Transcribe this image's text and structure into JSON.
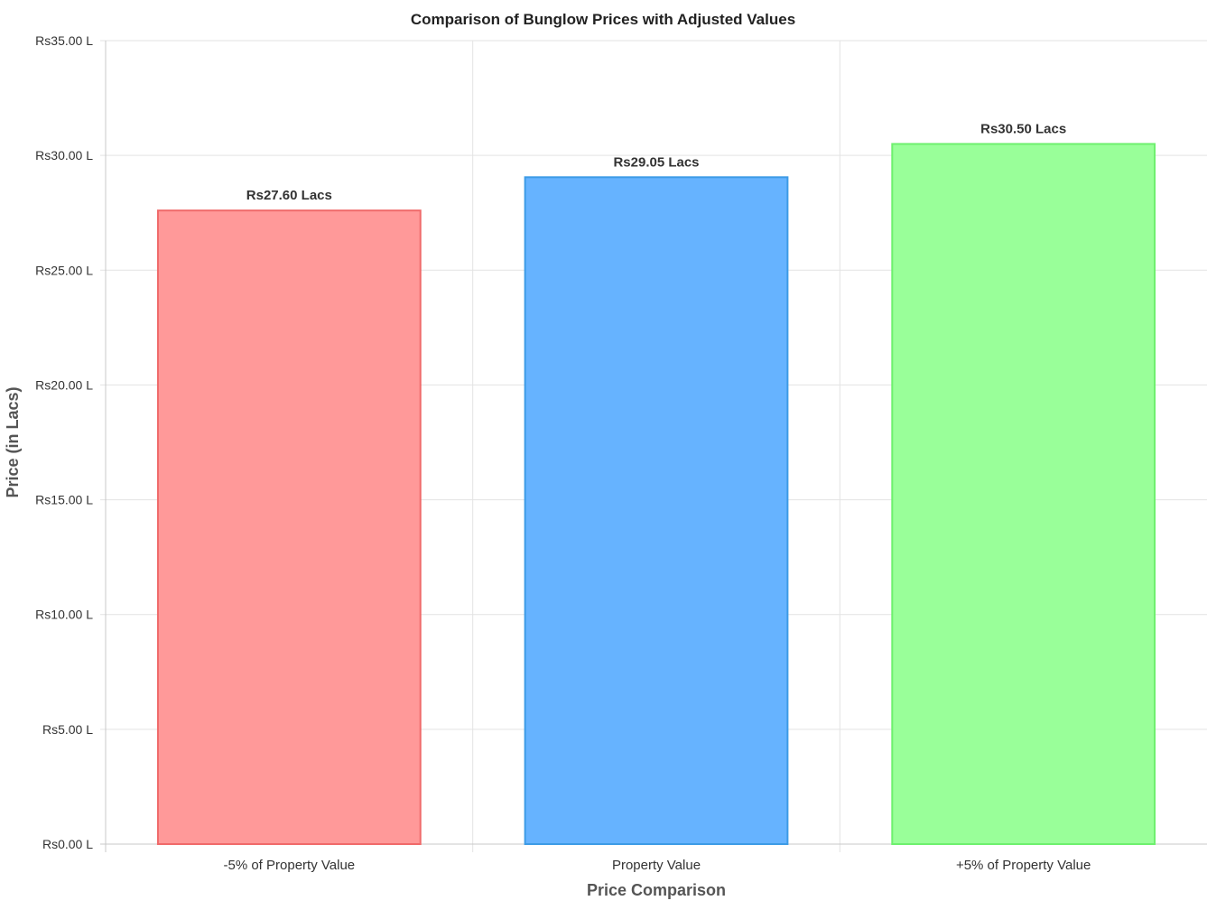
{
  "chart_data": {
    "type": "bar",
    "title": "Comparison of Bunglow Prices with Adjusted Values",
    "xlabel": "Price Comparison",
    "ylabel": "Price (in Lacs)",
    "categories": [
      "-5% of Property Value",
      "Property Value",
      "+5% of Property Value"
    ],
    "values": [
      27.6,
      29.05,
      30.5
    ],
    "data_labels": [
      "Rs27.60 Lacs",
      "Rs29.05 Lacs",
      "Rs30.50 Lacs"
    ],
    "ylim": [
      0,
      35
    ],
    "y_ticks": [
      0,
      5,
      10,
      15,
      20,
      25,
      30,
      35
    ],
    "y_tick_labels": [
      "Rs0.00 L",
      "Rs5.00 L",
      "Rs10.00 L",
      "Rs15.00 L",
      "Rs20.00 L",
      "Rs25.00 L",
      "Rs30.00 L",
      "Rs35.00 L"
    ],
    "grid": true,
    "legend": "none",
    "bar_fill_colors": [
      "#ff9999",
      "#66b3ff",
      "#99ff99"
    ],
    "bar_border_colors": [
      "#f06a6a",
      "#3d9be6",
      "#6ef06e"
    ],
    "grid_color": "#e3e3e3",
    "axis_color": "#c8c8c8",
    "title_color": "#222222",
    "tick_label_color": "#333333",
    "axis_title_color": "#555555"
  }
}
